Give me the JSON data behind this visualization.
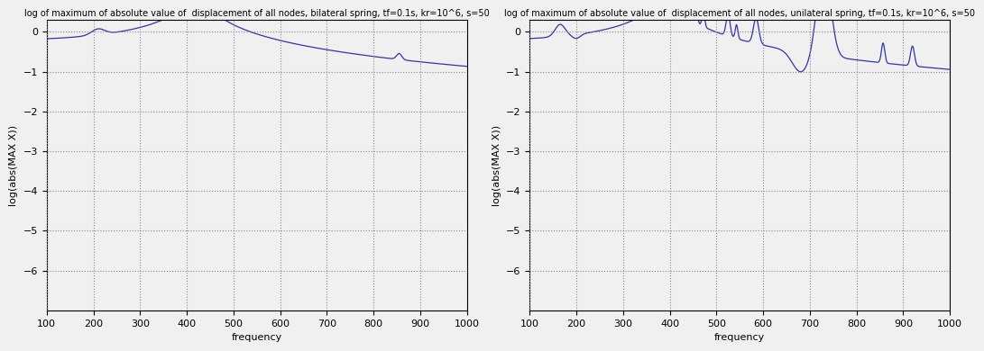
{
  "title_left": "log of maximum of absolute value of  displacement of all nodes, bilateral spring, tf=0.1s, kr=10^6, s=50",
  "title_right": "log of maximum of absolute value of  displacement of all nodes, unilateral spring, tf=0.1s, kr=10^6, s=50",
  "xlabel": "frequency",
  "ylabel": "log(abs(MAX X))",
  "xlim": [
    100,
    1000
  ],
  "ylim": [
    -7,
    0.3
  ],
  "yticks": [
    0,
    -1,
    -2,
    -3,
    -4,
    -5,
    -6
  ],
  "xticks": [
    100,
    200,
    300,
    400,
    500,
    600,
    700,
    800,
    900,
    1000
  ],
  "line_color": "#3333aa",
  "bg_color": "#f0f0f0",
  "title_fontsize": 7,
  "axis_fontsize": 8,
  "tick_fontsize": 8
}
